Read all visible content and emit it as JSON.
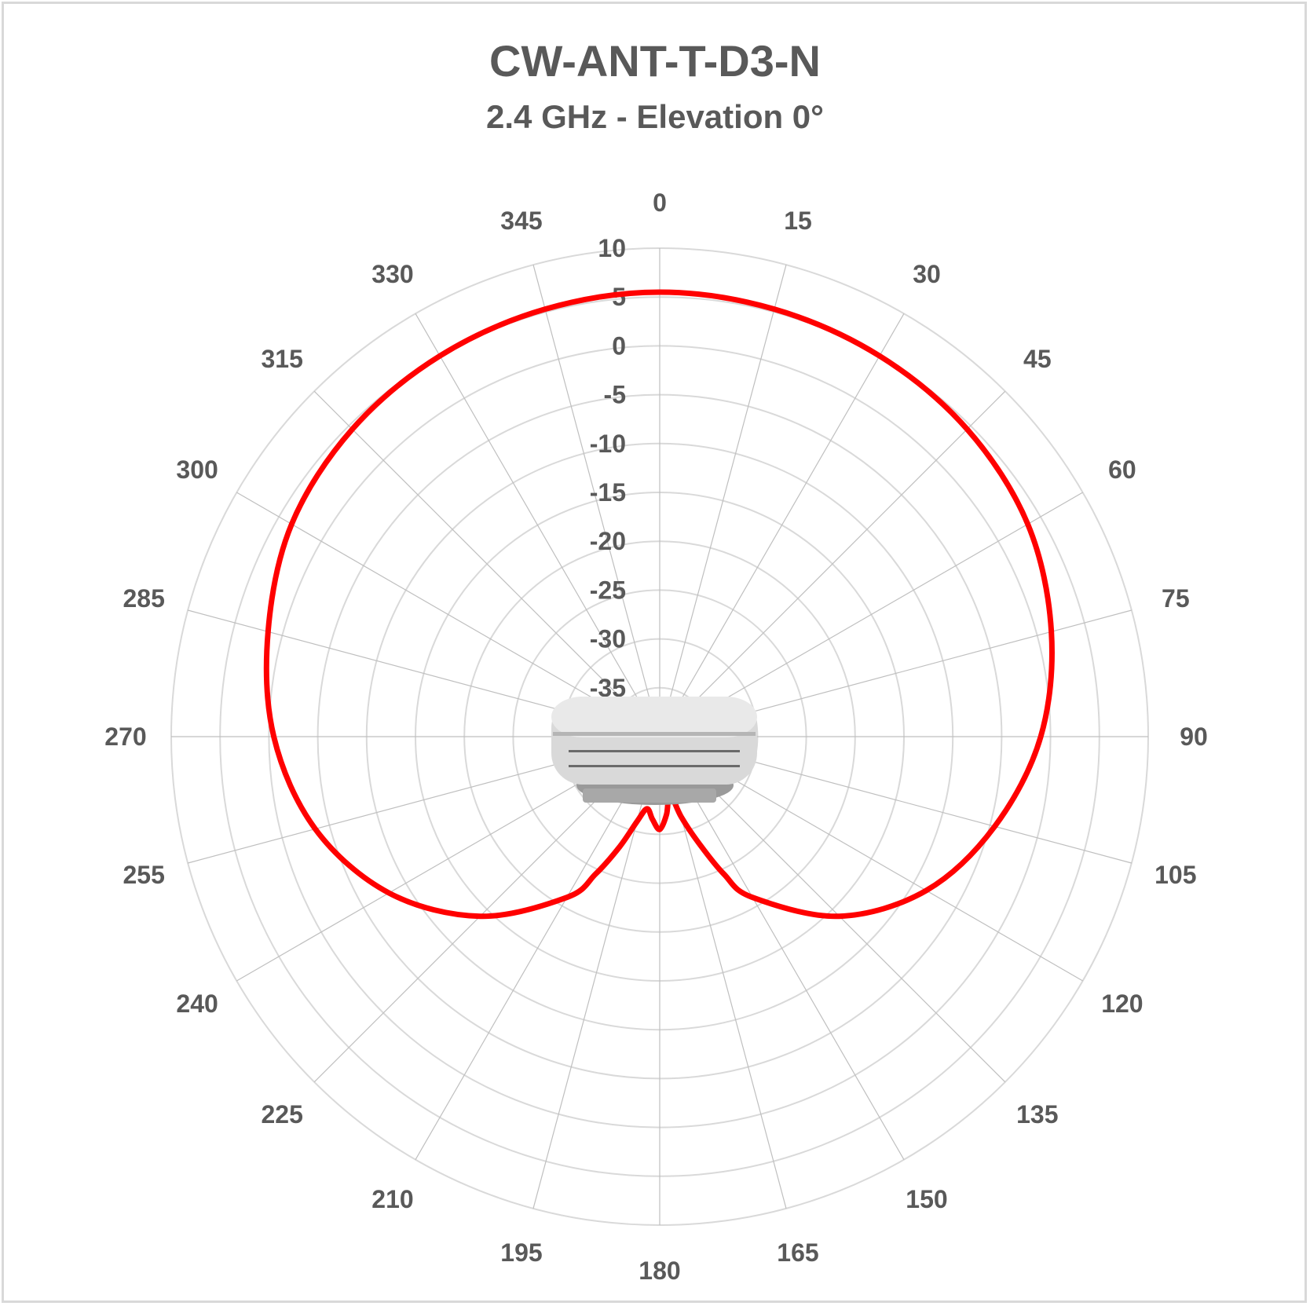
{
  "chart_data": {
    "type": "polar-line",
    "title": "CW-ANT-T-D3-N",
    "subtitle": "2.4 GHz - Elevation 0°",
    "angle_ticks": [
      "0",
      "15",
      "30",
      "45",
      "60",
      "75",
      "90",
      "105",
      "120",
      "135",
      "150",
      "165",
      "180",
      "195",
      "210",
      "225",
      "240",
      "255",
      "270",
      "285",
      "300",
      "315",
      "330",
      "345"
    ],
    "radial_ticks": [
      "10",
      "5",
      "0",
      "-5",
      "-10",
      "-15",
      "-20",
      "-25",
      "-30",
      "-35"
    ],
    "radial_range": [
      -40,
      10
    ],
    "grid": true,
    "series": [
      {
        "color": "#ff0000",
        "angles": [
          0,
          15,
          30,
          45,
          60,
          75,
          90,
          105,
          120,
          135,
          150,
          155,
          160,
          165,
          170,
          175,
          180,
          185,
          190,
          195,
          200,
          205,
          210,
          225,
          240,
          255,
          270,
          285,
          300,
          315,
          330,
          345
        ],
        "values": [
          5.5,
          5.3,
          5.0,
          4.5,
          3.5,
          1.5,
          -1.0,
          -4.5,
          -8.5,
          -14.0,
          -21.0,
          -24.5,
          -28.5,
          -31.5,
          -34.0,
          -32.0,
          -30.5,
          -31.5,
          -32.5,
          -31.0,
          -28.0,
          -24.5,
          -21.0,
          -14.0,
          -8.0,
          -3.5,
          -0.5,
          1.5,
          3.5,
          4.5,
          5.0,
          5.3
        ]
      }
    ]
  },
  "device_image": {
    "icon": "antenna-enclosure-icon"
  }
}
